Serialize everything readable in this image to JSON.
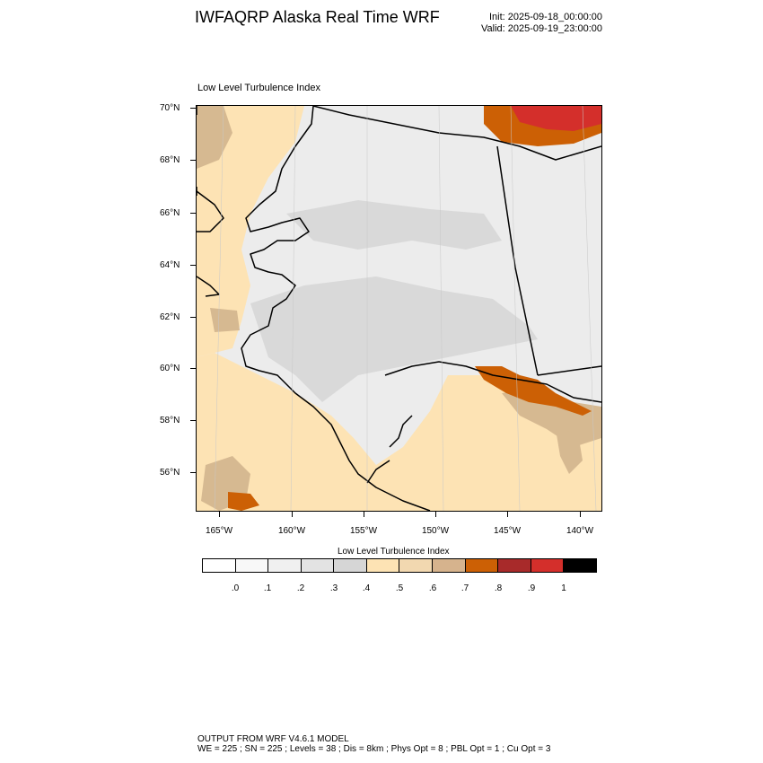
{
  "header": {
    "title": "IWFAQRP Alaska Real Time WRF",
    "init": "Init: 2025-09-18_00:00:00",
    "valid": "Valid: 2025-09-19_23:00:00"
  },
  "map": {
    "subtitle": "Low Level Turbulence Index",
    "lat_labels": [
      "70°N",
      "68°N",
      "66°N",
      "64°N",
      "62°N",
      "60°N",
      "58°N",
      "56°N"
    ],
    "lon_labels": [
      "165°W",
      "160°W",
      "155°W",
      "150°W",
      "145°W",
      "140°W"
    ],
    "colors": {
      "ocean": "#fde3b4",
      "land_light": "#ededed",
      "land_mid": "#dcdcdc",
      "orange": "#cc6005",
      "red": "#d42f2b",
      "tan": "#d6b991",
      "coast": "#000000"
    }
  },
  "colorbar": {
    "title": "Low Level Turbulence Index",
    "labels": [
      ".0",
      ".1",
      ".2",
      ".3",
      ".4",
      ".5",
      ".6",
      ".7",
      ".8",
      ".9",
      "1"
    ],
    "colors": [
      "#ffffff",
      "#f8f8f8",
      "#f0f0f0",
      "#e3e3e3",
      "#d6d6d6",
      "#fde3b4",
      "#f2d8b0",
      "#d6b38d",
      "#cc6005",
      "#a82a2a",
      "#d42f2b",
      "#000000"
    ]
  },
  "footer": {
    "line1": "OUTPUT FROM WRF V4.6.1 MODEL",
    "line2": "WE = 225 ; SN = 225 ; Levels = 38 ; Dis = 8km ; Phys Opt = 8 ; PBL Opt = 1 ; Cu Opt = 3"
  }
}
